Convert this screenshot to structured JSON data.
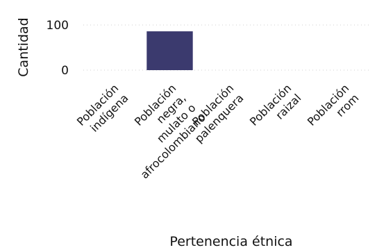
{
  "chart_data": {
    "type": "bar",
    "xlabel": "Pertenencia étnica",
    "ylabel": "Cantidad",
    "categories": [
      [
        "Población",
        "indígena"
      ],
      [
        "Población",
        "negra,",
        "mulato o",
        "afrocolombiano"
      ],
      [
        "Población",
        "palenquera"
      ],
      [
        "Población",
        "raizal"
      ],
      [
        "Población",
        "rrom"
      ]
    ],
    "values": [
      0,
      86,
      0,
      0,
      0
    ],
    "yticks": [
      0,
      100
    ],
    "ylim": [
      0,
      110
    ],
    "grid": true,
    "bar_color": "#3b3a6e"
  }
}
